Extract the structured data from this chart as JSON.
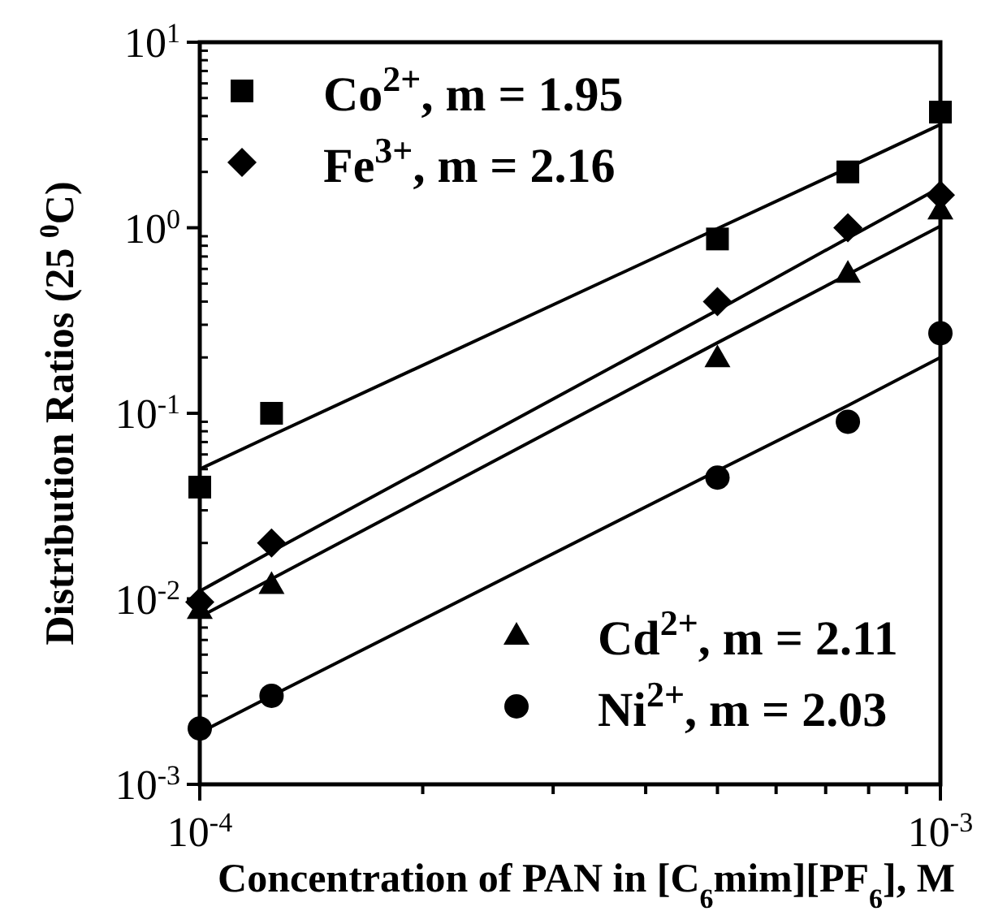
{
  "chart_data": {
    "type": "scatter",
    "xlabel": "Concentration of PAN in [C$_{6}$mim][PF$_{6}$], M",
    "ylabel": "Distribution Ratios (25 $^{0}$C)",
    "log": "xy",
    "legend": "top left",
    "grid": false,
    "x": [
      0.0001,
      0.000125,
      0.0005,
      0.00075,
      0.001
    ],
    "xlim": [
      0.0001,
      0.001
    ],
    "ylim": [
      0.001,
      10
    ],
    "xticks": [
      {
        "value": 0.0001,
        "label": "10$^{-4}$"
      },
      {
        "value": 0.0002,
        "label": null
      },
      {
        "value": 0.0003,
        "label": null
      },
      {
        "value": 0.0004,
        "label": null
      },
      {
        "value": 0.0005,
        "label": null
      },
      {
        "value": 0.0006,
        "label": null
      },
      {
        "value": 0.0007,
        "label": null
      },
      {
        "value": 0.0008,
        "label": null
      },
      {
        "value": 0.0009,
        "label": null
      },
      {
        "value": 0.001,
        "label": "10$^{-3}$"
      }
    ],
    "yticks": [
      {
        "value": 0.001,
        "label": "10$^{-3}$"
      },
      {
        "value": 0.01,
        "label": "10$^{-2}$"
      },
      {
        "value": 0.1,
        "label": "10$^{-1}$"
      },
      {
        "value": 1,
        "label": "10$^{0}$"
      },
      {
        "value": 10,
        "label": "10$^{1}$"
      }
    ],
    "series": [
      {
        "name": "Co$^{2+}$, m = 1.95",
        "color": "#000000",
        "marker": "square",
        "values": [
          0.04,
          0.1,
          0.87,
          2.0,
          4.2
        ]
      },
      {
        "name": "Fe$^{3+}$, m = 2.16",
        "color": "#000000",
        "marker": "diamond",
        "values": [
          0.0096,
          0.02,
          0.4,
          1.0,
          1.5
        ]
      },
      {
        "name": "Cd$^{2+}$, m = 2.11",
        "color": "#000000",
        "marker": "triangle",
        "values": [
          0.0088,
          0.012,
          0.2,
          0.57,
          1.25
        ]
      },
      {
        "name": "Ni$^{2+}$, m = 2.03",
        "color": "#000000",
        "marker": "circle",
        "values": [
          0.002,
          0.003,
          0.045,
          0.09,
          0.27
        ]
      },
      {
        "type": "line",
        "color": "#000000",
        "marker": "none",
        "line_style": "solid",
        "values": [
          0.05,
          0.076,
          0.99,
          2.1,
          3.6
        ]
      },
      {
        "type": "line",
        "color": "#000000",
        "marker": "none",
        "line_style": "solid",
        "values": [
          0.011,
          0.018,
          0.36,
          0.88,
          1.65
        ]
      },
      {
        "type": "line",
        "color": "#000000",
        "marker": "none",
        "line_style": "solid",
        "values": [
          0.008,
          0.0128,
          0.24,
          0.56,
          1.02
        ]
      },
      {
        "type": "line",
        "color": "#000000",
        "marker": "none",
        "line_style": "solid",
        "values": [
          0.0019,
          0.003,
          0.049,
          0.11,
          0.2
        ]
      }
    ]
  }
}
